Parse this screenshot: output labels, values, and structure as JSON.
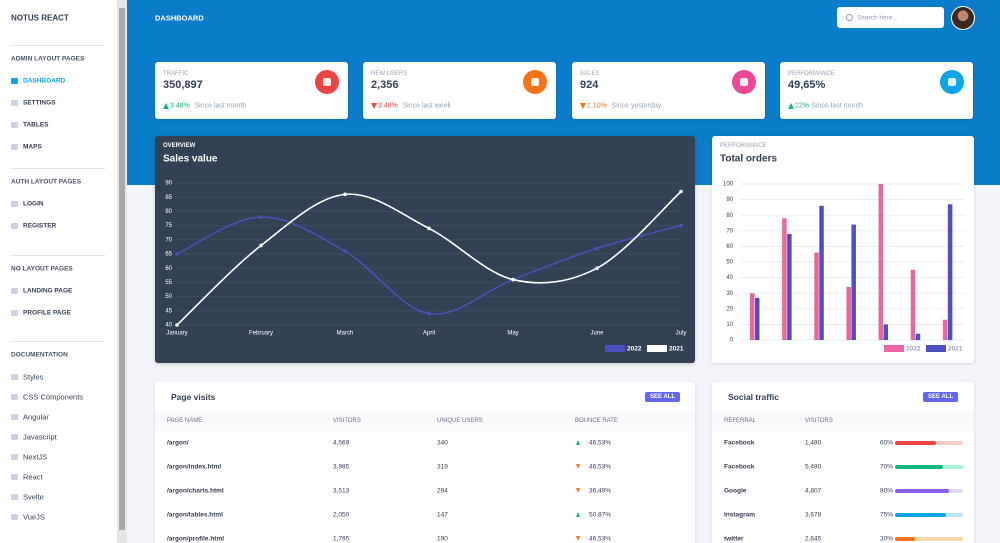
{
  "sidebar": {
    "brand": "NOTUS REACT",
    "sections": [
      {
        "heading": "ADMIN LAYOUT PAGES",
        "items": [
          "DASHBOARD",
          "SETTINGS",
          "TABLES",
          "MAPS"
        ]
      },
      {
        "heading": "AUTH LAYOUT PAGES",
        "items": [
          "LOGIN",
          "REGISTER"
        ]
      },
      {
        "heading": "NO LAYOUT PAGES",
        "items": [
          "LANDING PAGE",
          "PROFILE PAGE"
        ]
      },
      {
        "heading": "DOCUMENTATION",
        "items": [
          "Styles",
          "CSS Components",
          "Angular",
          "Javascript",
          "NextJS",
          "React",
          "Svelte",
          "VueJS"
        ]
      }
    ]
  },
  "header": {
    "title": "DASHBOARD",
    "search_placeholder": "Search here..."
  },
  "stats": [
    {
      "label": "TRAFFIC",
      "value": "350,897",
      "change": "3.48%",
      "note": "Since last month",
      "trend": "up",
      "trend_color": "#10b981",
      "icon_color": "#ef4444"
    },
    {
      "label": "NEW USERS",
      "value": "2,356",
      "change": "3.48%",
      "note": "Since last week",
      "trend": "down",
      "trend_color": "#ef4444",
      "icon_color": "#f97316"
    },
    {
      "label": "SALES",
      "value": "924",
      "change": "1.10%",
      "note": "Since yesterday",
      "trend": "down",
      "trend_color": "#f97316",
      "icon_color": "#ec4899"
    },
    {
      "label": "PERFORMANCE",
      "value": "49,65%",
      "change": "12%",
      "note": "Since last month",
      "trend": "up",
      "trend_color": "#10b981",
      "icon_color": "#0ea5e9"
    }
  ],
  "sales_chart": {
    "type": "line",
    "overline": "OVERVIEW",
    "title": "Sales value",
    "categories": [
      "January",
      "February",
      "March",
      "April",
      "May",
      "June",
      "July"
    ],
    "series": [
      {
        "name": "2022",
        "color": "#4c51bf",
        "values": [
          65,
          78,
          66,
          44,
          56,
          67,
          75
        ]
      },
      {
        "name": "2021",
        "color": "#ffffff",
        "values": [
          40,
          68,
          86,
          74,
          56,
          60,
          87
        ]
      }
    ],
    "ylim": [
      40,
      90
    ],
    "yticks": [
      40,
      45,
      50,
      55,
      60,
      65,
      70,
      75,
      80,
      85,
      90
    ],
    "grid": true
  },
  "orders_chart": {
    "type": "bar",
    "overline": "PERFORMANCE",
    "title": "Total orders",
    "series": [
      {
        "name": "2022",
        "color": "#ed64a6",
        "values": [
          30,
          78,
          56,
          34,
          100,
          45,
          13
        ]
      },
      {
        "name": "2021",
        "color": "#4c51bf",
        "values": [
          27,
          68,
          86,
          74,
          10,
          4,
          87
        ]
      }
    ],
    "ylim": [
      0,
      100
    ],
    "yticks": [
      0,
      10,
      20,
      30,
      40,
      50,
      60,
      70,
      80,
      90,
      100
    ],
    "grid": true
  },
  "page_visits": {
    "title": "Page visits",
    "button": "SEE ALL",
    "columns": [
      "PAGE NAME",
      "VISITORS",
      "UNIQUE USERS",
      "BOUNCE RATE"
    ],
    "rows": [
      {
        "cells": [
          "/argon/",
          "4,569",
          "340",
          "46,53%"
        ],
        "trend": "up"
      },
      {
        "cells": [
          "/argon/index.html",
          "3,985",
          "319",
          "46,53%"
        ],
        "trend": "down"
      },
      {
        "cells": [
          "/argon/charts.html",
          "3,513",
          "294",
          "36,49%"
        ],
        "trend": "down"
      },
      {
        "cells": [
          "/argon/tables.html",
          "2,050",
          "147",
          "50,87%"
        ],
        "trend": "up"
      },
      {
        "cells": [
          "/argon/profile.html",
          "1,795",
          "190",
          "46,53%"
        ],
        "trend": "down"
      }
    ]
  },
  "social_traffic": {
    "title": "Social traffic",
    "button": "SEE ALL",
    "columns": [
      "REFERRAL",
      "VISITORS"
    ],
    "rows": [
      {
        "referral": "Facebook",
        "visitors": "1,480",
        "value": 60,
        "value_label": "60%",
        "color": "#ef4444",
        "track": "#fecaca"
      },
      {
        "referral": "Facebook",
        "visitors": "5,480",
        "value": 70,
        "value_label": "70%",
        "color": "#10b981",
        "track": "#a7f3d0"
      },
      {
        "referral": "Google",
        "visitors": "4,807",
        "value": 80,
        "value_label": "80%",
        "color": "#8b5cf6",
        "track": "#ddd6fe"
      },
      {
        "referral": "Instagram",
        "visitors": "3,678",
        "value": 75,
        "value_label": "75%",
        "color": "#0ea5e9",
        "track": "#bae6fd"
      },
      {
        "referral": "twitter",
        "visitors": "2,645",
        "value": 30,
        "value_label": "30%",
        "color": "#f97316",
        "track": "#fed7aa"
      }
    ]
  }
}
